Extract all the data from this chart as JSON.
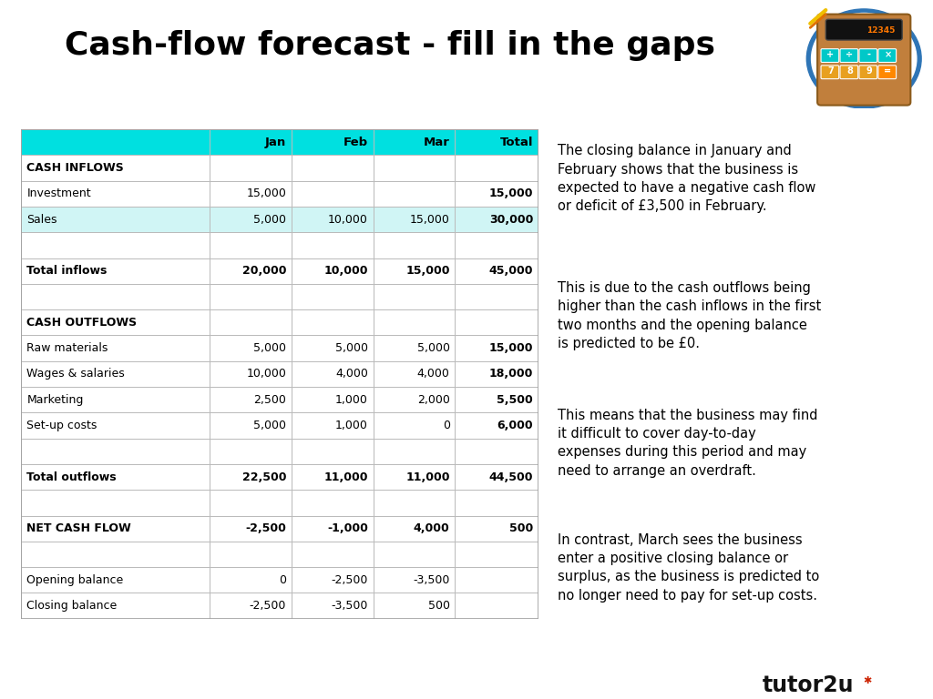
{
  "title": "Cash-flow forecast - fill in the gaps",
  "title_fontsize": 26,
  "bg_color": "#ffffff",
  "dark_blue": "#1f4e79",
  "mid_blue": "#2e75b6",
  "cyan_header": "#00e0e0",
  "table_rows": [
    [
      "",
      "Jan",
      "Feb",
      "Mar",
      "Total"
    ],
    [
      "CASH INFLOWS",
      "",
      "",
      "",
      ""
    ],
    [
      "Investment",
      "15,000",
      "",
      "",
      "15,000"
    ],
    [
      "Sales",
      "5,000",
      "10,000",
      "15,000",
      "30,000"
    ],
    [
      "",
      "",
      "",
      "",
      ""
    ],
    [
      "Total inflows",
      "20,000",
      "10,000",
      "15,000",
      "45,000"
    ],
    [
      "",
      "",
      "",
      "",
      ""
    ],
    [
      "CASH OUTFLOWS",
      "",
      "",
      "",
      ""
    ],
    [
      "Raw materials",
      "5,000",
      "5,000",
      "5,000",
      "15,000"
    ],
    [
      "Wages & salaries",
      "10,000",
      "4,000",
      "4,000",
      "18,000"
    ],
    [
      "Marketing",
      "2,500",
      "1,000",
      "2,000",
      "5,500"
    ],
    [
      "Set-up costs",
      "5,000",
      "1,000",
      "0",
      "6,000"
    ],
    [
      "",
      "",
      "",
      "",
      ""
    ],
    [
      "Total outflows",
      "22,500",
      "11,000",
      "11,000",
      "44,500"
    ],
    [
      "",
      "",
      "",
      "",
      ""
    ],
    [
      "NET CASH FLOW",
      "-2,500",
      "-1,000",
      "4,000",
      "500"
    ],
    [
      "",
      "",
      "",
      "",
      ""
    ],
    [
      "Opening balance",
      "0",
      "-2,500",
      "-3,500",
      ""
    ],
    [
      "Closing balance",
      "-2,500",
      "-3,500",
      "500",
      ""
    ]
  ],
  "bold_rows": [
    5,
    13,
    15
  ],
  "section_header_rows": [
    1,
    7
  ],
  "cyan_row": 0,
  "light_cyan_rows": [
    3
  ],
  "bold_total_col_rows": [
    2,
    3,
    5,
    8,
    9,
    10,
    11,
    13,
    15
  ],
  "right_paragraphs": [
    "The closing balance in January and\nFebruary shows that the business is\nexpected to have a negative cash flow\nor deficit of £3,500 in February.",
    "This is due to the cash outflows being\nhigher than the cash inflows in the first\ntwo months and the opening balance\nis predicted to be £0.",
    "This means that the business may find\nit difficult to cover day-to-day\nexpenses during this period and may\nneed to arrange an overdraft.",
    "In contrast, March sees the business\nenter a positive closing balance or\nsurplus, as the business is predicted to\nno longer need to pay for set-up costs."
  ],
  "bar_dark": "#1f4e79",
  "bar_light": "#2e75b6",
  "border_color": "#a0a0a0",
  "grid_color": "#bbbbbb"
}
